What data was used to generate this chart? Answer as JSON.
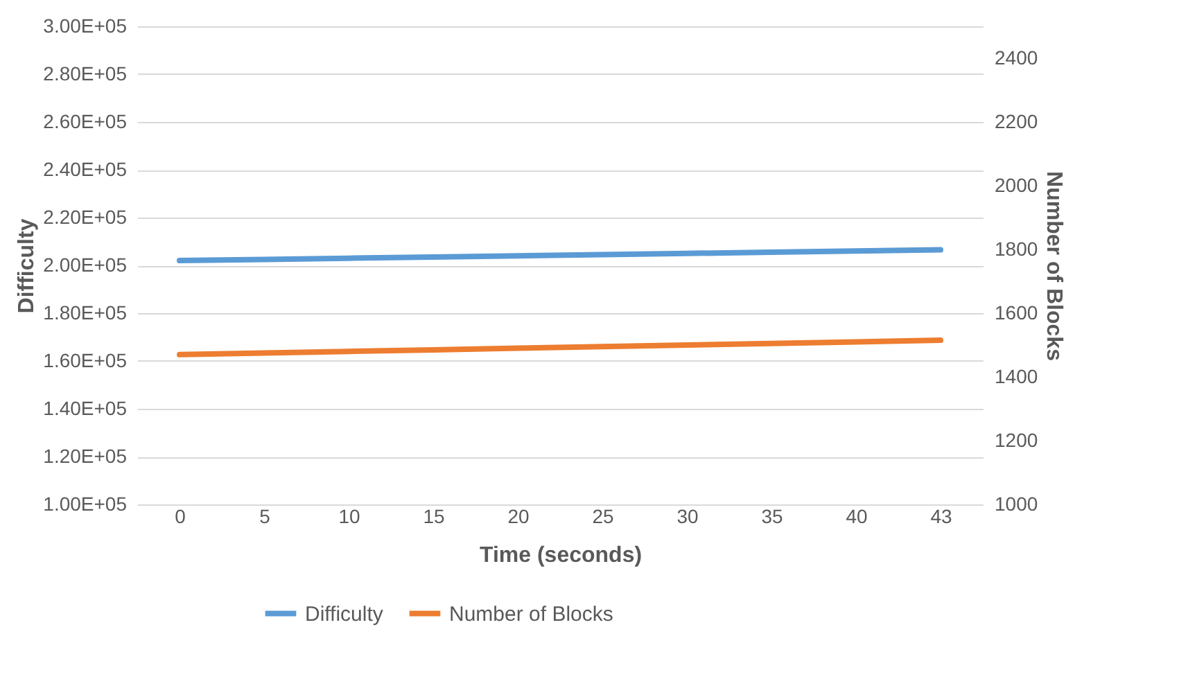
{
  "chart_data": {
    "type": "line",
    "xlabel": "Time (seconds)",
    "ylabel": "Difficulty",
    "y2label": "Number of Blocks",
    "categories": [
      "0",
      "5",
      "10",
      "15",
      "20",
      "25",
      "30",
      "35",
      "40",
      "43"
    ],
    "series": [
      {
        "name": "Difficulty",
        "color": "#5b9bd5",
        "values": [
          202000,
          202500,
          203000,
          203500,
          204000,
          204500,
          205000,
          205500,
          206000,
          206500
        ]
      },
      {
        "name": "Number of  Blocks",
        "color": "#ed7d31",
        "axis": "y2",
        "values": [
          1470,
          1475,
          1480,
          1485,
          1490,
          1495,
          1500,
          1505,
          1510,
          1515
        ]
      }
    ],
    "ylim": [
      100000,
      300000
    ],
    "yticks": [
      {
        "value": 100000,
        "label": "1.00E+05"
      },
      {
        "value": 120000,
        "label": "1.20E+05"
      },
      {
        "value": 140000,
        "label": "1.40E+05"
      },
      {
        "value": 160000,
        "label": "1.60E+05"
      },
      {
        "value": 180000,
        "label": "1.80E+05"
      },
      {
        "value": 200000,
        "label": "2.00E+05"
      },
      {
        "value": 220000,
        "label": "2.20E+05"
      },
      {
        "value": 240000,
        "label": "2.40E+05"
      },
      {
        "value": 260000,
        "label": "2.60E+05"
      },
      {
        "value": 280000,
        "label": "2.80E+05"
      },
      {
        "value": 300000,
        "label": "3.00E+05"
      }
    ],
    "y2lim": [
      1000,
      2500
    ],
    "y2ticks": [
      1000,
      1200,
      1400,
      1600,
      1800,
      2000,
      2200,
      2400
    ],
    "grid": "y",
    "legend": "bottom",
    "marker": "none",
    "line_style": "solid"
  }
}
